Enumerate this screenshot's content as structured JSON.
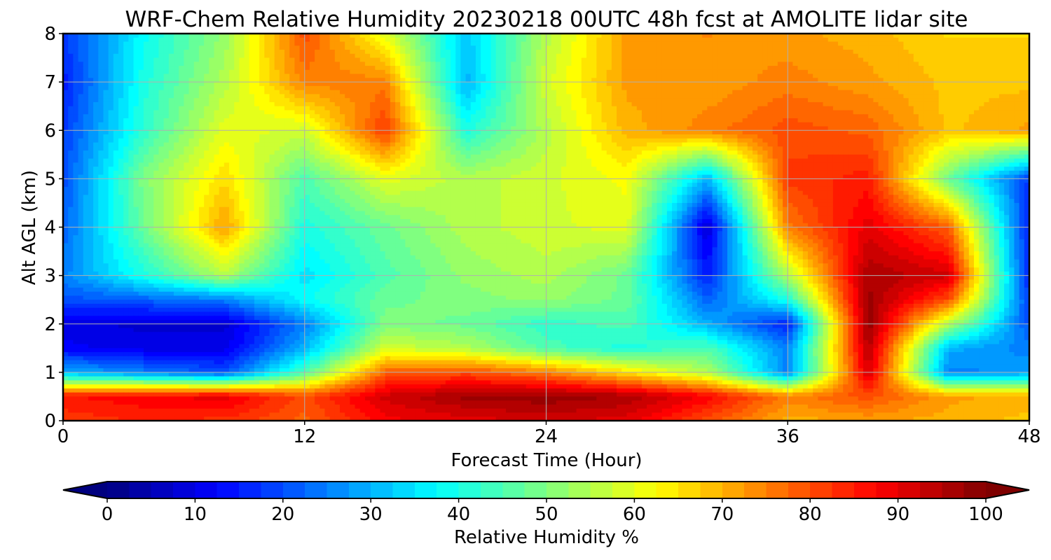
{
  "chart_data": {
    "type": "heatmap",
    "title": "WRF-Chem Relative Humidity 20230218 00UTC 48h fcst at AMOLITE lidar site",
    "xlabel": "Forecast Time (Hour)",
    "ylabel": "Alt AGL (km)",
    "xlim": [
      0,
      48
    ],
    "ylim": [
      0,
      8
    ],
    "xticks": [
      0,
      12,
      24,
      36,
      48
    ],
    "yticks": [
      0,
      1,
      2,
      3,
      4,
      5,
      6,
      7,
      8
    ],
    "grid": true,
    "colorbar": {
      "label": "Relative Humidity %",
      "ticks": [
        0,
        10,
        20,
        30,
        40,
        50,
        60,
        70,
        80,
        90,
        100
      ],
      "range": [
        0,
        100
      ],
      "extend": "both",
      "colormap": "jet"
    },
    "x": [
      0,
      4,
      8,
      12,
      16,
      20,
      24,
      28,
      32,
      36,
      40,
      44,
      48
    ],
    "y": [
      0,
      0.5,
      1,
      1.5,
      2,
      2.5,
      3,
      4,
      5,
      6,
      7,
      8
    ],
    "z": [
      [
        82,
        84,
        83,
        78,
        88,
        90,
        92,
        90,
        80,
        70,
        72,
        70,
        68
      ],
      [
        86,
        88,
        90,
        80,
        92,
        97,
        98,
        96,
        88,
        75,
        80,
        72,
        70
      ],
      [
        30,
        25,
        20,
        45,
        78,
        80,
        75,
        65,
        55,
        25,
        92,
        25,
        28
      ],
      [
        12,
        10,
        10,
        30,
        58,
        55,
        45,
        40,
        45,
        25,
        95,
        30,
        25
      ],
      [
        10,
        8,
        8,
        25,
        50,
        48,
        42,
        45,
        30,
        15,
        98,
        55,
        20
      ],
      [
        20,
        22,
        25,
        38,
        48,
        50,
        52,
        48,
        22,
        40,
        97,
        80,
        18
      ],
      [
        25,
        40,
        55,
        35,
        45,
        52,
        55,
        48,
        15,
        55,
        96,
        92,
        15
      ],
      [
        22,
        48,
        72,
        40,
        48,
        55,
        58,
        60,
        8,
        75,
        90,
        78,
        15
      ],
      [
        20,
        50,
        66,
        45,
        60,
        55,
        58,
        62,
        30,
        82,
        85,
        48,
        18
      ],
      [
        18,
        42,
        60,
        58,
        82,
        40,
        55,
        70,
        75,
        80,
        78,
        68,
        72
      ],
      [
        15,
        40,
        55,
        75,
        75,
        30,
        58,
        72,
        72,
        75,
        72,
        68,
        68
      ],
      [
        18,
        38,
        52,
        80,
        60,
        32,
        55,
        72,
        74,
        72,
        70,
        66,
        66
      ]
    ]
  }
}
